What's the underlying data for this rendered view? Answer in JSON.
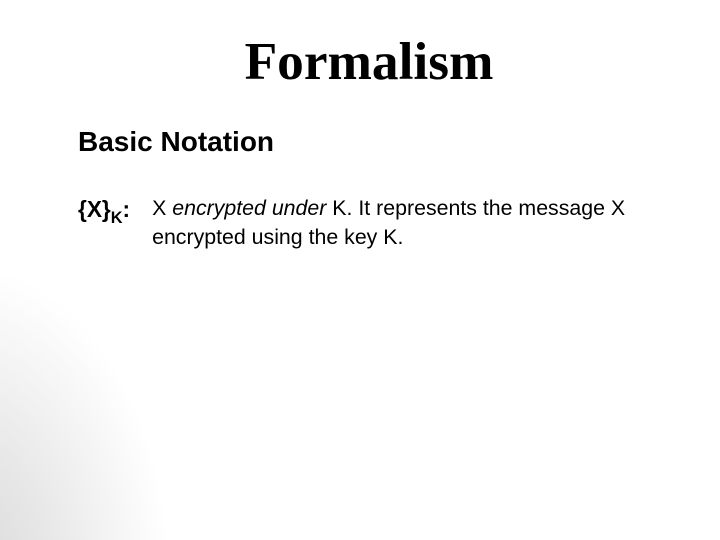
{
  "slide": {
    "background_color": "#ffffff",
    "gradient_corner_color": "#d8d8d8",
    "title": {
      "text": "Formalism",
      "font_family": "Times New Roman",
      "font_weight": "bold",
      "font_size_pt": 40,
      "color": "#000000"
    },
    "subtitle": {
      "text": "Basic Notation",
      "font_family": "Arial",
      "font_weight": "bold",
      "font_size_pt": 21,
      "color": "#000000"
    },
    "definition": {
      "term_base": "{X}",
      "term_subscript": "K",
      "term_suffix": ":",
      "term_font_size_pt": 17,
      "term_font_weight": "bold",
      "desc_prefix": "X  ",
      "desc_italic": "encrypted under",
      "desc_rest": " K.  It represents the message X encrypted using the key K.",
      "desc_font_size_pt": 16,
      "color": "#000000"
    }
  }
}
